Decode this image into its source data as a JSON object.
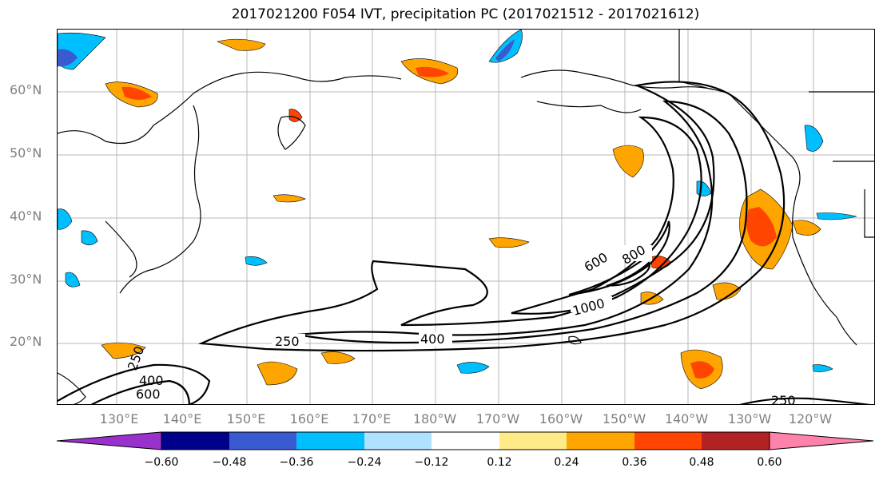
{
  "title": "2017021200 F054 IVT, precipitation PC (2017021512 - 2017021612)",
  "map": {
    "lat_labels": [
      "60°N",
      "50°N",
      "40°N",
      "30°N",
      "20°N"
    ],
    "lon_labels": [
      "130°E",
      "140°E",
      "150°E",
      "160°E",
      "170°E",
      "180°W",
      "170°W",
      "160°W",
      "150°W",
      "140°W",
      "130°W",
      "120°W"
    ],
    "ivt_contour_labels": [
      "250",
      "400",
      "600",
      "800",
      "1000",
      "250",
      "400",
      "600",
      "250"
    ],
    "gridlines": true
  },
  "colorbar": {
    "colors": [
      "#9932CC",
      "#00008B",
      "#3A5AD0",
      "#00BFFF",
      "#AEE2FF",
      "#FFFFFF",
      "#FFEA88",
      "#FFA500",
      "#FF4500",
      "#B22222",
      "#FF82AB"
    ],
    "tick_labels": [
      "−0.60",
      "−0.48",
      "−0.36",
      "−0.24",
      "−0.12",
      "0.12",
      "0.24",
      "0.36",
      "0.48",
      "0.60"
    ]
  }
}
